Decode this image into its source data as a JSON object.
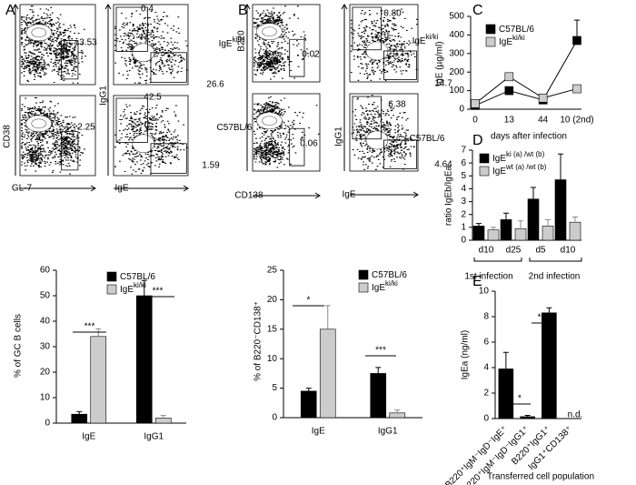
{
  "panel_labels": [
    "A",
    "B",
    "C",
    "D",
    "E"
  ],
  "flow_panels": [
    {
      "row_labels": [
        {
          "text": "IgE",
          "sup": "ki/ki"
        },
        {
          "text": "C57BL/6"
        }
      ],
      "left": {
        "ylabel": "CD38",
        "xlabel": "GL-7",
        "gates": [
          "3.53",
          "2.25"
        ]
      },
      "right": {
        "ylabel": "IgG1",
        "xlabel": "IgE",
        "gates": [
          [
            "0.4",
            "26.6"
          ],
          [
            "42.5",
            "1.59"
          ]
        ]
      }
    },
    {
      "row_labels": [
        {
          "text": "IgE",
          "sup": "ki/ki"
        },
        {
          "text": "C57BL/6"
        }
      ],
      "left": {
        "ylabel": "B220",
        "xlabel": "CD138",
        "gates": [
          "0.02",
          "0.06"
        ]
      },
      "right": {
        "ylabel": "IgG1",
        "xlabel": "IgE",
        "gates": [
          [
            "0.80",
            "14.7"
          ],
          [
            "6.38",
            "4.64"
          ]
        ]
      }
    }
  ],
  "chart_data": [
    {
      "type": "bar",
      "ylabel": "% of GC B cells",
      "categories": [
        "IgE",
        "IgG1"
      ],
      "series": [
        {
          "name": "C57BL/6",
          "color": "#000000",
          "values": [
            3.5,
            50
          ],
          "errors": [
            1,
            6
          ]
        },
        {
          "name": "IgE",
          "name_sup": "ki/ki",
          "color": "#cccccc",
          "values": [
            34,
            2
          ],
          "errors": [
            3,
            1
          ]
        }
      ],
      "ylim": [
        0,
        60
      ],
      "yticks": [
        0,
        10,
        20,
        30,
        40,
        50,
        60
      ],
      "annotations": [
        "***",
        "***"
      ]
    },
    {
      "type": "bar",
      "ylabel": "% of B220⁻CD138⁺",
      "categories": [
        "IgE",
        "IgG1"
      ],
      "series": [
        {
          "name": "C57BL/6",
          "color": "#000000",
          "values": [
            4.5,
            7.5
          ],
          "errors": [
            0.5,
            1
          ]
        },
        {
          "name": "IgE",
          "name_sup": "ki/ki",
          "color": "#cccccc",
          "values": [
            15,
            0.8
          ],
          "errors": [
            4,
            0.5
          ]
        }
      ],
      "ylim": [
        0,
        25
      ],
      "yticks": [
        0,
        5,
        10,
        15,
        20,
        25
      ],
      "annotations": [
        "*",
        "***"
      ]
    },
    {
      "type": "line",
      "ylabel": "IgE (µg/ml)",
      "xlabel": "days after infection",
      "categories": [
        "0",
        "13",
        "44",
        "10 (2nd)"
      ],
      "series": [
        {
          "name": "C57BL/6",
          "color": "#000000",
          "values": [
            20,
            100,
            50,
            370
          ],
          "errors": [
            5,
            10,
            10,
            110
          ]
        },
        {
          "name": "IgE",
          "name_sup": "ki/ki",
          "color": "#cccccc",
          "values": [
            30,
            175,
            60,
            110
          ],
          "errors": [
            5,
            20,
            10,
            10
          ]
        }
      ],
      "ylim": [
        0,
        500
      ],
      "yticks": [
        0,
        100,
        200,
        300,
        400,
        500
      ]
    },
    {
      "type": "bar",
      "ylabel": "ratio IgEb/IgEa",
      "categories": [
        "d10",
        "d25",
        "d5",
        "d10"
      ],
      "groups": [
        "1st infection",
        "2nd infection"
      ],
      "series": [
        {
          "name": "IgE",
          "name_sup": "ki (a) /wt (b)",
          "color": "#000000",
          "values": [
            1.1,
            1.6,
            3.2,
            4.7
          ],
          "errors": [
            0.2,
            0.5,
            0.9,
            2
          ]
        },
        {
          "name": "IgE",
          "name_sup": "wt (a) /wt (b)",
          "color": "#cccccc",
          "values": [
            0.8,
            0.9,
            1.1,
            1.4
          ],
          "errors": [
            0.2,
            0.6,
            0.5,
            0.4
          ]
        }
      ],
      "ylim": [
        0,
        7
      ],
      "yticks": [
        0,
        1,
        2,
        3,
        4,
        5,
        6,
        7
      ]
    },
    {
      "type": "bar",
      "ylabel": "IgEa (ng/ml)",
      "xlabel": "Transferred cell population",
      "categories": [
        "B220⁺IgM⁻IgD⁻IgE⁺",
        "B220⁺IgM⁻IgD⁻IgG1⁺",
        "B220⁺IgG1⁺",
        "IgG1⁺CD138⁺"
      ],
      "series": [
        {
          "color": "#000000",
          "values": [
            3.9,
            0.15,
            8.3,
            null
          ],
          "errors": [
            1.3,
            0.1,
            0.4,
            null
          ]
        }
      ],
      "ylim": [
        0,
        10
      ],
      "yticks": [
        0,
        2,
        4,
        6,
        8,
        10
      ],
      "annotations": [
        "*",
        "***",
        "n.d."
      ]
    }
  ]
}
